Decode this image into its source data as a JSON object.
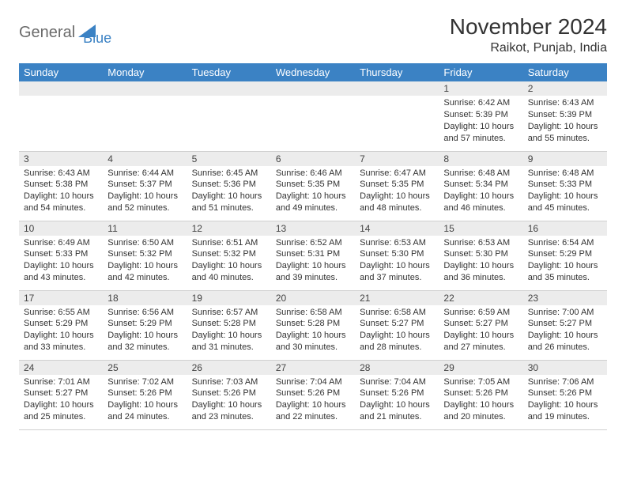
{
  "logo": {
    "part1": "General",
    "part2": "Blue"
  },
  "title": "November 2024",
  "location": "Raikot, Punjab, India",
  "colors": {
    "header_bg": "#3b82c4",
    "header_text": "#ffffff",
    "daynum_bg": "#ececec",
    "border": "#d0d0d0",
    "logo_gray": "#6b6b6b",
    "logo_blue": "#3b82c4",
    "text": "#333333"
  },
  "weekdays": [
    "Sunday",
    "Monday",
    "Tuesday",
    "Wednesday",
    "Thursday",
    "Friday",
    "Saturday"
  ],
  "weeks": [
    [
      {
        "n": "",
        "sr": "",
        "ss": "",
        "dl": ""
      },
      {
        "n": "",
        "sr": "",
        "ss": "",
        "dl": ""
      },
      {
        "n": "",
        "sr": "",
        "ss": "",
        "dl": ""
      },
      {
        "n": "",
        "sr": "",
        "ss": "",
        "dl": ""
      },
      {
        "n": "",
        "sr": "",
        "ss": "",
        "dl": ""
      },
      {
        "n": "1",
        "sr": "Sunrise: 6:42 AM",
        "ss": "Sunset: 5:39 PM",
        "dl": "Daylight: 10 hours and 57 minutes."
      },
      {
        "n": "2",
        "sr": "Sunrise: 6:43 AM",
        "ss": "Sunset: 5:39 PM",
        "dl": "Daylight: 10 hours and 55 minutes."
      }
    ],
    [
      {
        "n": "3",
        "sr": "Sunrise: 6:43 AM",
        "ss": "Sunset: 5:38 PM",
        "dl": "Daylight: 10 hours and 54 minutes."
      },
      {
        "n": "4",
        "sr": "Sunrise: 6:44 AM",
        "ss": "Sunset: 5:37 PM",
        "dl": "Daylight: 10 hours and 52 minutes."
      },
      {
        "n": "5",
        "sr": "Sunrise: 6:45 AM",
        "ss": "Sunset: 5:36 PM",
        "dl": "Daylight: 10 hours and 51 minutes."
      },
      {
        "n": "6",
        "sr": "Sunrise: 6:46 AM",
        "ss": "Sunset: 5:35 PM",
        "dl": "Daylight: 10 hours and 49 minutes."
      },
      {
        "n": "7",
        "sr": "Sunrise: 6:47 AM",
        "ss": "Sunset: 5:35 PM",
        "dl": "Daylight: 10 hours and 48 minutes."
      },
      {
        "n": "8",
        "sr": "Sunrise: 6:48 AM",
        "ss": "Sunset: 5:34 PM",
        "dl": "Daylight: 10 hours and 46 minutes."
      },
      {
        "n": "9",
        "sr": "Sunrise: 6:48 AM",
        "ss": "Sunset: 5:33 PM",
        "dl": "Daylight: 10 hours and 45 minutes."
      }
    ],
    [
      {
        "n": "10",
        "sr": "Sunrise: 6:49 AM",
        "ss": "Sunset: 5:33 PM",
        "dl": "Daylight: 10 hours and 43 minutes."
      },
      {
        "n": "11",
        "sr": "Sunrise: 6:50 AM",
        "ss": "Sunset: 5:32 PM",
        "dl": "Daylight: 10 hours and 42 minutes."
      },
      {
        "n": "12",
        "sr": "Sunrise: 6:51 AM",
        "ss": "Sunset: 5:32 PM",
        "dl": "Daylight: 10 hours and 40 minutes."
      },
      {
        "n": "13",
        "sr": "Sunrise: 6:52 AM",
        "ss": "Sunset: 5:31 PM",
        "dl": "Daylight: 10 hours and 39 minutes."
      },
      {
        "n": "14",
        "sr": "Sunrise: 6:53 AM",
        "ss": "Sunset: 5:30 PM",
        "dl": "Daylight: 10 hours and 37 minutes."
      },
      {
        "n": "15",
        "sr": "Sunrise: 6:53 AM",
        "ss": "Sunset: 5:30 PM",
        "dl": "Daylight: 10 hours and 36 minutes."
      },
      {
        "n": "16",
        "sr": "Sunrise: 6:54 AM",
        "ss": "Sunset: 5:29 PM",
        "dl": "Daylight: 10 hours and 35 minutes."
      }
    ],
    [
      {
        "n": "17",
        "sr": "Sunrise: 6:55 AM",
        "ss": "Sunset: 5:29 PM",
        "dl": "Daylight: 10 hours and 33 minutes."
      },
      {
        "n": "18",
        "sr": "Sunrise: 6:56 AM",
        "ss": "Sunset: 5:29 PM",
        "dl": "Daylight: 10 hours and 32 minutes."
      },
      {
        "n": "19",
        "sr": "Sunrise: 6:57 AM",
        "ss": "Sunset: 5:28 PM",
        "dl": "Daylight: 10 hours and 31 minutes."
      },
      {
        "n": "20",
        "sr": "Sunrise: 6:58 AM",
        "ss": "Sunset: 5:28 PM",
        "dl": "Daylight: 10 hours and 30 minutes."
      },
      {
        "n": "21",
        "sr": "Sunrise: 6:58 AM",
        "ss": "Sunset: 5:27 PM",
        "dl": "Daylight: 10 hours and 28 minutes."
      },
      {
        "n": "22",
        "sr": "Sunrise: 6:59 AM",
        "ss": "Sunset: 5:27 PM",
        "dl": "Daylight: 10 hours and 27 minutes."
      },
      {
        "n": "23",
        "sr": "Sunrise: 7:00 AM",
        "ss": "Sunset: 5:27 PM",
        "dl": "Daylight: 10 hours and 26 minutes."
      }
    ],
    [
      {
        "n": "24",
        "sr": "Sunrise: 7:01 AM",
        "ss": "Sunset: 5:27 PM",
        "dl": "Daylight: 10 hours and 25 minutes."
      },
      {
        "n": "25",
        "sr": "Sunrise: 7:02 AM",
        "ss": "Sunset: 5:26 PM",
        "dl": "Daylight: 10 hours and 24 minutes."
      },
      {
        "n": "26",
        "sr": "Sunrise: 7:03 AM",
        "ss": "Sunset: 5:26 PM",
        "dl": "Daylight: 10 hours and 23 minutes."
      },
      {
        "n": "27",
        "sr": "Sunrise: 7:04 AM",
        "ss": "Sunset: 5:26 PM",
        "dl": "Daylight: 10 hours and 22 minutes."
      },
      {
        "n": "28",
        "sr": "Sunrise: 7:04 AM",
        "ss": "Sunset: 5:26 PM",
        "dl": "Daylight: 10 hours and 21 minutes."
      },
      {
        "n": "29",
        "sr": "Sunrise: 7:05 AM",
        "ss": "Sunset: 5:26 PM",
        "dl": "Daylight: 10 hours and 20 minutes."
      },
      {
        "n": "30",
        "sr": "Sunrise: 7:06 AM",
        "ss": "Sunset: 5:26 PM",
        "dl": "Daylight: 10 hours and 19 minutes."
      }
    ]
  ]
}
